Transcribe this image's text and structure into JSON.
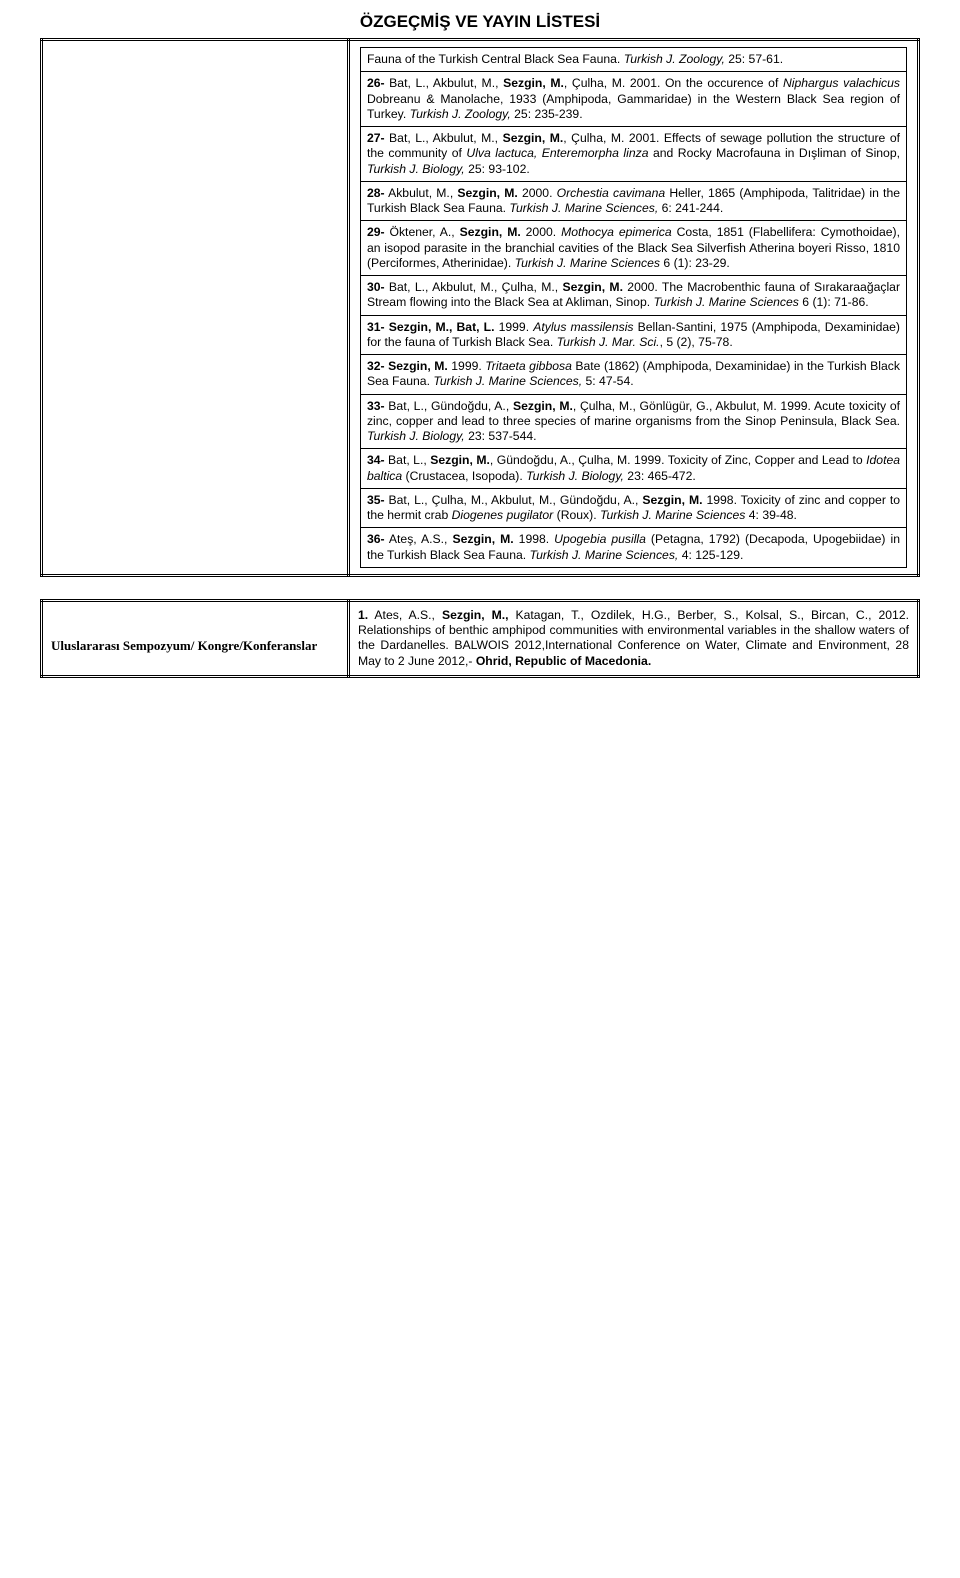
{
  "title": "ÖZGEÇMİŞ VE YAYIN LİSTESİ",
  "entries": [
    {
      "html": "Fauna of the Turkish Central Black Sea Fauna. <span class='ital'>Turkish J. Zoology,</span> 25: 57-61."
    },
    {
      "html": "<span class='bold'>26-</span> Bat, L., Akbulut, M., <span class='bold'>Sezgin, M.</span>, Çulha, M. 2001. On the occurence of <span class='ital'>Niphargus valachicus</span> Dobreanu & Manolache, 1933 (Amphipoda, Gammaridae) in the Western Black Sea region of Turkey. <span class='ital'>Turkish J. Zoology,</span> 25: 235-239."
    },
    {
      "html": "<span class='bold'>27-</span> Bat, L., Akbulut, M., <span class='bold'>Sezgin, M.</span>, Çulha, M. 2001. Effects of sewage pollution the structure of the community of <span class='ital'>Ulva lactuca, Enteremorpha linza</span> and Rocky Macrofauna in Dışliman of Sinop, <span class='ital'>Turkish J. Biology,</span> 25: 93-102."
    },
    {
      "html": "<span class='bold'>28-</span> Akbulut, M., <span class='bold'>Sezgin, M.</span> 2000. <span class='ital'>Orchestia cavimana</span> Heller, 1865 (Amphipoda, Talitridae) in the Turkish Black Sea Fauna. <span class='ital'>Turkish J. Marine Sciences,</span> 6: 241-244."
    },
    {
      "html": "<span class='bold'>29-</span> Öktener, A., <span class='bold'>Sezgin, M.</span> 2000. <span class='ital'>Mothocya epimerica</span> Costa, 1851 (Flabellifera: Cymothoidae), an isopod parasite in the branchial cavities of the Black Sea Silverfish Atherina boyeri Risso, 1810 (Perciformes, Atherinidae). <span class='ital'>Turkish J. Marine Sciences</span> 6 (1): 23-29."
    },
    {
      "html": "<span class='bold'>30-</span> Bat, L., Akbulut, M., Çulha, M., <span class='bold'>Sezgin, M.</span> 2000. The Macrobenthic fauna of Sırakaraağaçlar Stream flowing into the Black Sea at Akliman, Sinop. <span class='ital'>Turkish J. Marine Sciences</span> 6 (1): 71-86."
    },
    {
      "html": "<span class='bold'>31-</span> <span class='bold'>Sezgin, M., Bat, L.</span> 1999. <span class='ital'>Atylus massilensis</span> Bellan-Santini, 1975 (Amphipoda, Dexaminidae) for the fauna of Turkish Black Sea. <span class='ital'>Turkish J. Mar. Sci.</span>, 5 (2), 75-78."
    },
    {
      "html": "<span class='bold'>32-</span> <span class='bold'>Sezgin, M.</span> 1999. <span class='ital'>Tritaeta gibbosa</span> Bate (1862) (Amphipoda, Dexaminidae) in the Turkish Black Sea Fauna. <span class='ital'>Turkish J. Marine Sciences,</span> 5: 47-54."
    },
    {
      "html": "<span class='bold'>33-</span> Bat, L., Gündoğdu, A., <span class='bold'>Sezgin, M.</span>, Çulha, M., Gönlügür, G., Akbulut, M. 1999. Acute toxicity of zinc, copper and lead to three species of marine organisms from the Sinop Peninsula, Black Sea. <span class='ital'>Turkish J. Biology,</span> 23: 537-544."
    },
    {
      "html": "<span class='bold'>34-</span> Bat, L., <span class='bold'>Sezgin, M.</span>, Gündoğdu, A., Çulha, M. 1999. Toxicity of Zinc, Copper and Lead to <span class='ital'>Idotea baltica</span> (Crustacea, Isopoda). <span class='ital'>Turkish J. Biology,</span> 23: 465-472."
    },
    {
      "html": "<span class='bold'>35-</span> Bat, L., Çulha, M., Akbulut, M., Gündoğdu, A., <span class='bold'>Sezgin, M.</span> 1998. Toxicity of zinc and copper to the hermit crab <span class='ital'>Diogenes pugilator</span> (Roux). <span class='ital'>Turkish J. Marine Sciences</span> 4: 39-48."
    },
    {
      "html": "<span class='bold'>36-</span> Ateş, A.S., <span class='bold'>Sezgin, M.</span> 1998. <span class='ital'>Upogebia pusilla</span> (Petagna, 1792) (Decapoda, Upogebiidae) in the Turkish Black Sea Fauna. <span class='ital'>Turkish J. Marine Sciences,</span> 4: 125-129."
    }
  ],
  "row2": {
    "left": "Uluslararası Sempozyum/ Kongre/Konferanslar",
    "right": "<span class='bold'>1.</span> Ates, A.S., <span class='bold'>Sezgin, M.,</span> Katagan, T., Ozdilek, H.G., Berber, S., Kolsal, S., Bircan, C., 2012. Relationships of benthic amphipod communities with environmental variables in the shallow waters of the Dardanelles. BALWOIS 2012,International Conference on Water, Climate and Environment, 28 May to 2 June 2012,- <span class='bold'>Ohrid, Republic of Macedonia.</span>"
  }
}
